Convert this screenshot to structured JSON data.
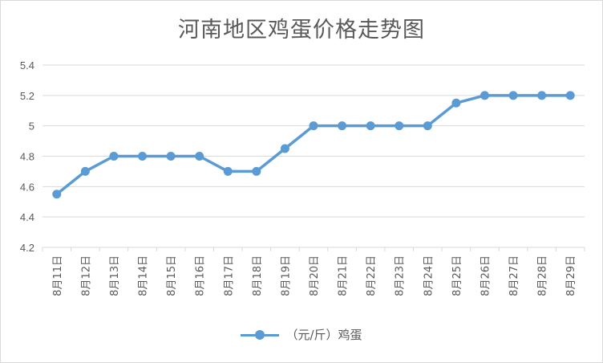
{
  "title": "河南地区鸡蛋价格走势图",
  "legend": {
    "label": "（元/斤）鸡蛋"
  },
  "colors": {
    "series": "#5b9bd5",
    "grid": "#d9d9d9",
    "text": "#595959"
  },
  "chart_data": {
    "type": "line",
    "title": "河南地区鸡蛋价格走势图",
    "categories": [
      "8月11日",
      "8月12日",
      "8月13日",
      "8月14日",
      "8月15日",
      "8月16日",
      "8月17日",
      "8月18日",
      "8月19日",
      "8月20日",
      "8月21日",
      "8月22日",
      "8月23日",
      "8月24日",
      "8月25日",
      "8月26日",
      "8月27日",
      "8月28日",
      "8月29日"
    ],
    "series": [
      {
        "name": "（元/斤）鸡蛋",
        "values": [
          4.55,
          4.7,
          4.8,
          4.8,
          4.8,
          4.8,
          4.7,
          4.7,
          4.85,
          5.0,
          5.0,
          5.0,
          5.0,
          5.0,
          5.15,
          5.2,
          5.2,
          5.2,
          5.2
        ]
      }
    ],
    "ylim": [
      4.2,
      5.4
    ],
    "yticks": [
      4.2,
      4.4,
      4.6,
      4.8,
      5,
      5.2,
      5.4
    ],
    "grid": true,
    "legend_position": "bottom"
  }
}
